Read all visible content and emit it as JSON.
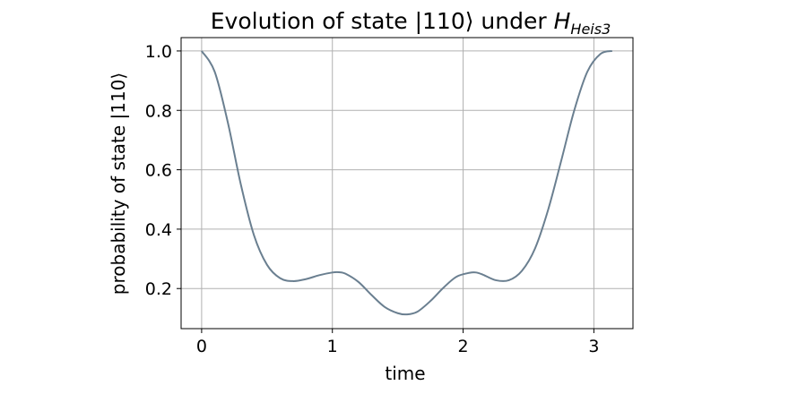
{
  "chart_data": {
    "type": "line",
    "title": {
      "prefix": "Evolution of state |110⟩ under ",
      "symbol": "H",
      "subscript": "Heis3"
    },
    "xlabel": "time",
    "ylabel": "probability of state |110⟩",
    "xlim": [
      -0.157,
      3.299
    ],
    "ylim": [
      0.065,
      1.045
    ],
    "xticks": [
      0,
      1,
      2,
      3
    ],
    "xtick_labels": [
      "0",
      "1",
      "2",
      "3"
    ],
    "yticks": [
      0.2,
      0.4,
      0.6,
      0.8,
      1.0
    ],
    "ytick_labels": [
      "0.2",
      "0.4",
      "0.6",
      "0.8",
      "1.0"
    ],
    "grid": true,
    "line_color": "#6a7f90",
    "series": [
      {
        "x": [
          0.0,
          0.1,
          0.2,
          0.3,
          0.4,
          0.5,
          0.6,
          0.7,
          0.8,
          0.9,
          1.0,
          1.05,
          1.1,
          1.2,
          1.3,
          1.4,
          1.5,
          1.57,
          1.65,
          1.75,
          1.85,
          1.95,
          2.05,
          2.1,
          2.15,
          2.25,
          2.35,
          2.45,
          2.55,
          2.65,
          2.75,
          2.85,
          2.95,
          3.05,
          3.14
        ],
        "y": [
          1.0,
          0.93,
          0.76,
          0.55,
          0.38,
          0.28,
          0.235,
          0.225,
          0.232,
          0.245,
          0.254,
          0.255,
          0.25,
          0.222,
          0.178,
          0.138,
          0.117,
          0.113,
          0.122,
          0.158,
          0.203,
          0.24,
          0.253,
          0.254,
          0.247,
          0.228,
          0.228,
          0.26,
          0.335,
          0.465,
          0.63,
          0.8,
          0.93,
          0.99,
          1.0
        ]
      }
    ]
  }
}
